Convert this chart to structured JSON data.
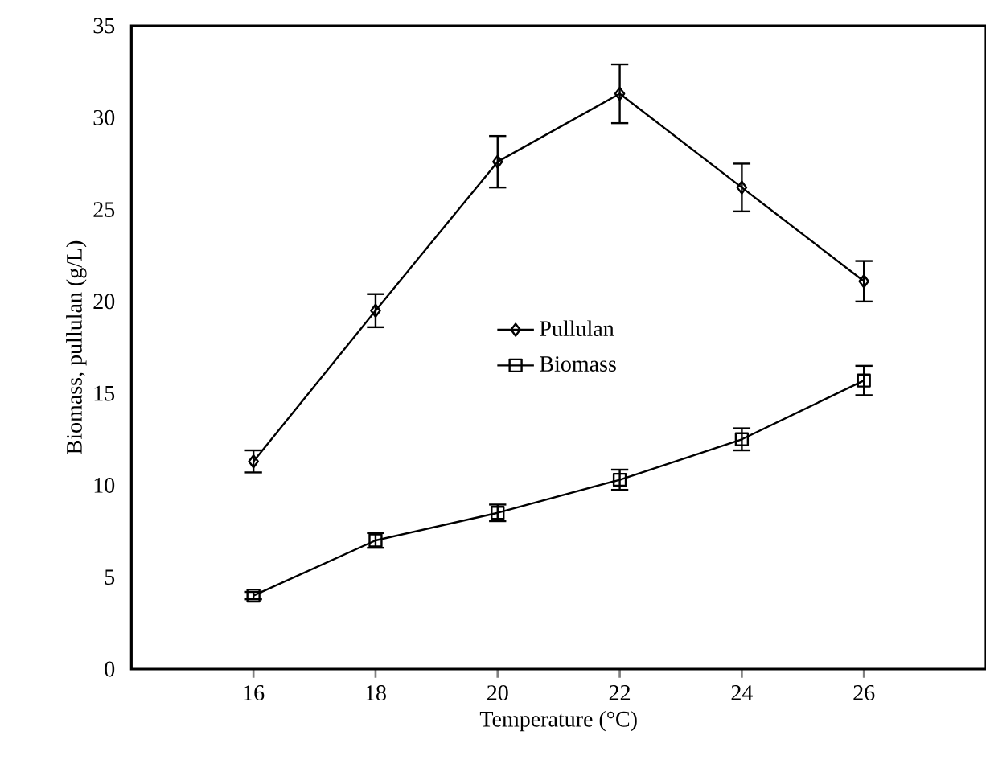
{
  "chart_data": {
    "type": "line",
    "xlabel": "Temperature (°C)",
    "ylabel": "Biomass, pullulan (g/L)",
    "xlim": [
      14,
      28
    ],
    "xticks": [
      16,
      18,
      20,
      22,
      24,
      26
    ],
    "ylim": [
      0,
      35
    ],
    "yticks": [
      0,
      5,
      10,
      15,
      20,
      25,
      30,
      35
    ],
    "x": [
      16,
      18,
      20,
      22,
      24,
      26
    ],
    "series": [
      {
        "name": "Pullulan",
        "color": "#000000",
        "marker": "diamond",
        "values": [
          11.3,
          19.5,
          27.6,
          31.3,
          26.2,
          21.1
        ],
        "errors": [
          0.6,
          0.9,
          1.4,
          1.6,
          1.3,
          1.1
        ]
      },
      {
        "name": "Biomass",
        "color": "#000000",
        "marker": "square",
        "values": [
          4.0,
          7.0,
          8.5,
          10.3,
          12.5,
          15.7
        ],
        "errors": [
          0.2,
          0.4,
          0.45,
          0.55,
          0.6,
          0.8
        ]
      }
    ],
    "grid": false,
    "legend": "center",
    "line_style": "solid"
  }
}
